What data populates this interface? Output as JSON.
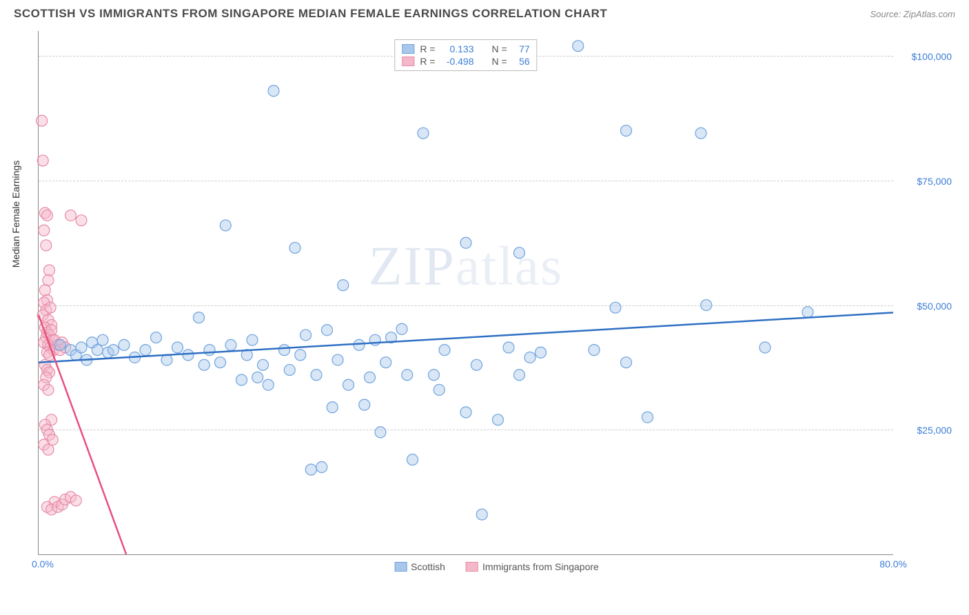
{
  "title": "SCOTTISH VS IMMIGRANTS FROM SINGAPORE MEDIAN FEMALE EARNINGS CORRELATION CHART",
  "source": "Source: ZipAtlas.com",
  "watermark": {
    "zip": "ZIP",
    "atlas": "atlas"
  },
  "y_axis_title": "Median Female Earnings",
  "chart": {
    "type": "scatter",
    "xlim": [
      0,
      80
    ],
    "ylim": [
      0,
      105000
    ],
    "x_ticks": [
      {
        "value": 0,
        "label": "0.0%"
      },
      {
        "value": 80,
        "label": "80.0%"
      }
    ],
    "y_ticks": [
      {
        "value": 25000,
        "label": "$25,000"
      },
      {
        "value": 50000,
        "label": "$50,000"
      },
      {
        "value": 75000,
        "label": "$75,000"
      },
      {
        "value": 100000,
        "label": "$100,000"
      }
    ],
    "grid_color": "#cccccc",
    "axis_color": "#888888",
    "background_color": "#ffffff",
    "marker_radius": 8,
    "marker_opacity": 0.45,
    "series": [
      {
        "name": "Scottish",
        "color_fill": "#a9c7ec",
        "color_stroke": "#6fa3de",
        "r_label": "R =",
        "r_value": "0.133",
        "n_label": "N =",
        "n_value": "77",
        "trend": {
          "x1": 0,
          "y1": 38500,
          "x2": 80,
          "y2": 48500,
          "color": "#2f6fc4",
          "width": 2.5
        },
        "points": [
          [
            2,
            42000
          ],
          [
            3,
            41000
          ],
          [
            3.5,
            40000
          ],
          [
            4,
            41500
          ],
          [
            4.5,
            39000
          ],
          [
            5,
            42500
          ],
          [
            5.5,
            41000
          ],
          [
            6,
            43000
          ],
          [
            6.5,
            40500
          ],
          [
            7,
            41000
          ],
          [
            8,
            42000
          ],
          [
            9,
            39500
          ],
          [
            10,
            41000
          ],
          [
            11,
            43500
          ],
          [
            12,
            39000
          ],
          [
            13,
            41500
          ],
          [
            14,
            40000
          ],
          [
            15,
            47500
          ],
          [
            15.5,
            38000
          ],
          [
            16,
            41000
          ],
          [
            17,
            38500
          ],
          [
            17.5,
            66000
          ],
          [
            18,
            42000
          ],
          [
            19,
            35000
          ],
          [
            19.5,
            40000
          ],
          [
            20,
            43000
          ],
          [
            21,
            38000
          ],
          [
            21.5,
            34000
          ],
          [
            22,
            93000
          ],
          [
            23,
            41000
          ],
          [
            23.5,
            37000
          ],
          [
            24,
            61500
          ],
          [
            25,
            44000
          ],
          [
            25.5,
            17000
          ],
          [
            26,
            36000
          ],
          [
            26.5,
            17500
          ],
          [
            27,
            45000
          ],
          [
            28,
            39000
          ],
          [
            28.5,
            54000
          ],
          [
            29,
            34000
          ],
          [
            30,
            42000
          ],
          [
            30.5,
            30000
          ],
          [
            31,
            35500
          ],
          [
            31.5,
            43000
          ],
          [
            32,
            24500
          ],
          [
            32.5,
            38500
          ],
          [
            33,
            43500
          ],
          [
            34,
            45200
          ],
          [
            34.5,
            36000
          ],
          [
            35,
            19000
          ],
          [
            36,
            84500
          ],
          [
            37,
            36000
          ],
          [
            37.5,
            33000
          ],
          [
            38,
            41000
          ],
          [
            40,
            62500
          ],
          [
            40,
            28500
          ],
          [
            41,
            38000
          ],
          [
            41.5,
            8000
          ],
          [
            43,
            27000
          ],
          [
            45,
            60500
          ],
          [
            45,
            36000
          ],
          [
            46,
            39500
          ],
          [
            50.5,
            102000
          ],
          [
            52,
            41000
          ],
          [
            54,
            49500
          ],
          [
            55,
            38500
          ],
          [
            55,
            85000
          ],
          [
            57,
            27500
          ],
          [
            62,
            84500
          ],
          [
            62.5,
            50000
          ],
          [
            68,
            41500
          ],
          [
            72,
            48600
          ],
          [
            44,
            41500
          ],
          [
            47,
            40500
          ],
          [
            20.5,
            35500
          ],
          [
            24.5,
            40000
          ],
          [
            27.5,
            29500
          ]
        ]
      },
      {
        "name": "Immigrants from Singapore",
        "color_fill": "#f4b8c9",
        "color_stroke": "#e98aa8",
        "r_label": "R =",
        "r_value": "-0.498",
        "n_label": "N =",
        "n_value": "56",
        "trend": {
          "x1": 0,
          "y1": 48000,
          "x2": 8.2,
          "y2": 0,
          "color": "#e84f7d",
          "width": 2.5
        },
        "points": [
          [
            0.3,
            87000
          ],
          [
            0.4,
            79000
          ],
          [
            0.6,
            68500
          ],
          [
            0.8,
            68000
          ],
          [
            0.5,
            65000
          ],
          [
            0.7,
            62000
          ],
          [
            1.0,
            57000
          ],
          [
            0.9,
            55000
          ],
          [
            0.6,
            53000
          ],
          [
            0.8,
            51000
          ],
          [
            0.5,
            50500
          ],
          [
            0.7,
            49000
          ],
          [
            1.1,
            49500
          ],
          [
            0.4,
            48000
          ],
          [
            0.9,
            47000
          ],
          [
            1.2,
            46000
          ],
          [
            0.6,
            45500
          ],
          [
            0.8,
            44500
          ],
          [
            1.0,
            44000
          ],
          [
            0.7,
            43500
          ],
          [
            1.3,
            43000
          ],
          [
            0.5,
            42500
          ],
          [
            0.9,
            42000
          ],
          [
            1.1,
            41500
          ],
          [
            1.4,
            41000
          ],
          [
            0.8,
            40500
          ],
          [
            1.0,
            40000
          ],
          [
            1.2,
            45000
          ],
          [
            1.5,
            43000
          ],
          [
            1.8,
            42000
          ],
          [
            2.0,
            41000
          ],
          [
            2.2,
            42500
          ],
          [
            2.5,
            41500
          ],
          [
            0.6,
            38000
          ],
          [
            0.8,
            37000
          ],
          [
            1.0,
            36500
          ],
          [
            0.7,
            35500
          ],
          [
            0.5,
            34000
          ],
          [
            0.9,
            33000
          ],
          [
            1.2,
            27000
          ],
          [
            0.6,
            26000
          ],
          [
            0.8,
            25000
          ],
          [
            1.0,
            24000
          ],
          [
            1.3,
            23000
          ],
          [
            0.5,
            22000
          ],
          [
            0.9,
            21000
          ],
          [
            1.5,
            10500
          ],
          [
            0.8,
            9500
          ],
          [
            1.2,
            9000
          ],
          [
            1.8,
            9500
          ],
          [
            2.2,
            10000
          ],
          [
            2.5,
            11000
          ],
          [
            3.0,
            11500
          ],
          [
            3.5,
            10800
          ],
          [
            3.0,
            68000
          ],
          [
            4.0,
            67000
          ]
        ]
      }
    ]
  },
  "legend": {
    "s1_label": "Scottish",
    "s2_label": "Immigrants from Singapore"
  }
}
